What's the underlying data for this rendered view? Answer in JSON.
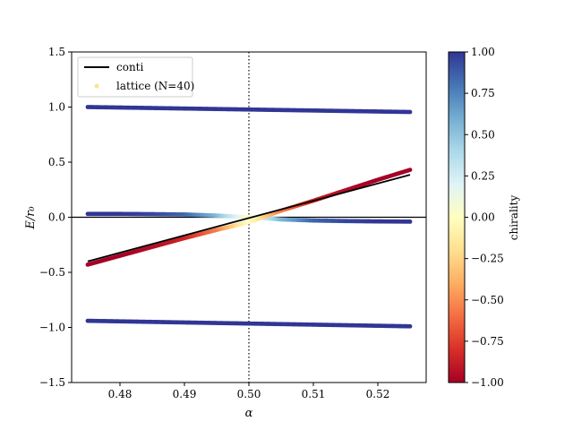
{
  "chart_data": {
    "type": "scatter",
    "title": "",
    "xlabel": "α",
    "ylabel": "E/r₀",
    "xlim": [
      0.4725,
      0.5275
    ],
    "ylim": [
      -1.5,
      1.5
    ],
    "xticks": [
      0.48,
      0.49,
      0.5,
      0.51,
      0.52
    ],
    "xtick_labels": [
      "0.48",
      "0.49",
      "0.50",
      "0.51",
      "0.52"
    ],
    "yticks": [
      -1.5,
      -1.0,
      -0.5,
      0.0,
      0.5,
      1.0,
      1.5
    ],
    "ytick_labels": [
      "−1.5",
      "−1.0",
      "−0.5",
      "0.0",
      "0.5",
      "1.0",
      "1.5"
    ],
    "grid": false,
    "legend_position": "top-left",
    "reference_lines": {
      "horizontal_y": 0.0,
      "vertical_x_dotted": 0.5
    },
    "colorbar": {
      "label": "chirality",
      "range": [
        -1.0,
        1.0
      ],
      "ticks": [
        -1.0,
        -0.75,
        -0.5,
        -0.25,
        0.0,
        0.25,
        0.5,
        0.75,
        1.0
      ],
      "tick_labels": [
        "−1.00",
        "−0.75",
        "−0.50",
        "−0.25",
        "0.00",
        "0.25",
        "0.50",
        "0.75",
        "1.00"
      ],
      "colormap": "RdYlBu",
      "colors": [
        "#a50026",
        "#d73027",
        "#f46d43",
        "#fdae61",
        "#fee090",
        "#ffffbf",
        "#e0f3f8",
        "#abd9e9",
        "#74add1",
        "#4575b4",
        "#313695"
      ]
    },
    "series": [
      {
        "name": "conti",
        "kind": "line",
        "color": "#000000",
        "x": [
          0.475,
          0.525
        ],
        "y": [
          -0.4,
          0.385
        ]
      },
      {
        "name": "lattice (N=40)",
        "kind": "scatter",
        "legend_color": "#fee090",
        "bands": [
          {
            "x": [
              0.475,
              0.525
            ],
            "y": [
              1.0,
              0.955
            ],
            "chirality": [
              1.0,
              1.0
            ]
          },
          {
            "x": [
              0.475,
              0.525
            ],
            "y": [
              -0.94,
              -0.99
            ],
            "chirality": [
              1.0,
              1.0
            ]
          },
          {
            "x": [
              0.475,
              0.48,
              0.485,
              0.49,
              0.495,
              0.5,
              0.505,
              0.51,
              0.515,
              0.52,
              0.525
            ],
            "y": [
              0.03,
              0.03,
              0.028,
              0.025,
              0.015,
              0.0,
              -0.02,
              -0.03,
              -0.035,
              -0.038,
              -0.04
            ],
            "chirality": [
              1.0,
              1.0,
              0.95,
              0.85,
              0.55,
              0.0,
              0.55,
              0.85,
              0.95,
              1.0,
              1.0
            ],
            "note_join": "upper-left to lower-right"
          },
          {
            "x": [
              0.475,
              0.48,
              0.485,
              0.49,
              0.495,
              0.5,
              0.505,
              0.51,
              0.515,
              0.52,
              0.525
            ],
            "y": [
              -0.43,
              -0.35,
              -0.27,
              -0.19,
              -0.115,
              -0.045,
              0.06,
              0.15,
              0.245,
              0.34,
              0.43
            ],
            "chirality": [
              -1.0,
              -1.0,
              -0.95,
              -0.85,
              -0.55,
              0.0,
              -0.55,
              -0.85,
              -0.95,
              -1.0,
              -1.0
            ]
          }
        ]
      }
    ]
  }
}
